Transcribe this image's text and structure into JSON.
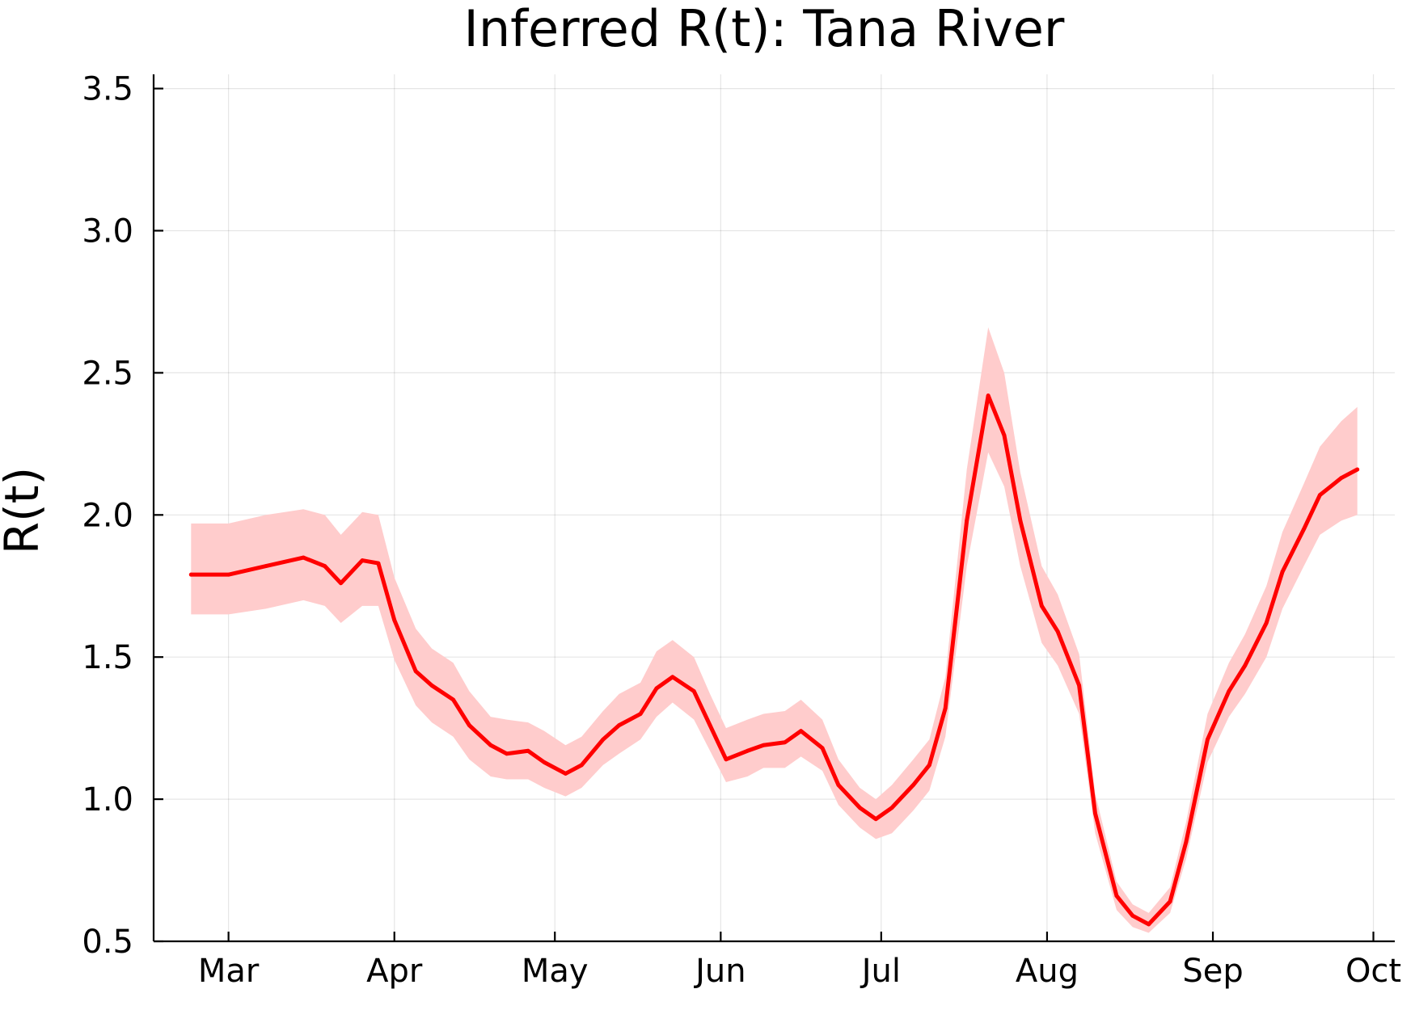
{
  "chart_data": {
    "type": "line",
    "title": "Inferred R(t): Tana River",
    "xlabel": "",
    "ylabel": "R(t)",
    "ylim": [
      0.5,
      3.55
    ],
    "xlim": [
      "2020-02-16",
      "2020-10-05"
    ],
    "grid": true,
    "legend": "none",
    "colors": {
      "line": "#ff0000",
      "band": "#ffcccc",
      "axis": "#000000"
    },
    "x_ticks": [
      {
        "label": "Mar",
        "date": "2020-03-01"
      },
      {
        "label": "Apr",
        "date": "2020-04-01"
      },
      {
        "label": "May",
        "date": "2020-05-01"
      },
      {
        "label": "Jun",
        "date": "2020-06-01"
      },
      {
        "label": "Jul",
        "date": "2020-07-01"
      },
      {
        "label": "Aug",
        "date": "2020-08-01"
      },
      {
        "label": "Sep",
        "date": "2020-09-01"
      },
      {
        "label": "Oct",
        "date": "2020-10-01"
      }
    ],
    "y_ticks": [
      {
        "label": "0.5",
        "value": 0.5
      },
      {
        "label": "1.0",
        "value": 1.0
      },
      {
        "label": "1.5",
        "value": 1.5
      },
      {
        "label": "2.0",
        "value": 2.0
      },
      {
        "label": "2.5",
        "value": 2.5
      },
      {
        "label": "3.0",
        "value": 3.0
      },
      {
        "label": "3.5",
        "value": 3.5
      }
    ],
    "series": [
      {
        "x": [
          "2020-02-23",
          "2020-03-01",
          "2020-03-08",
          "2020-03-15",
          "2020-03-19",
          "2020-03-22",
          "2020-03-26",
          "2020-03-29",
          "2020-04-01",
          "2020-04-05",
          "2020-04-08",
          "2020-04-12",
          "2020-04-15",
          "2020-04-19",
          "2020-04-22",
          "2020-04-26",
          "2020-04-29",
          "2020-05-03",
          "2020-05-06",
          "2020-05-10",
          "2020-05-13",
          "2020-05-17",
          "2020-05-20",
          "2020-05-23",
          "2020-05-27",
          "2020-05-30",
          "2020-06-02",
          "2020-06-06",
          "2020-06-09",
          "2020-06-13",
          "2020-06-16",
          "2020-06-20",
          "2020-06-23",
          "2020-06-27",
          "2020-06-30",
          "2020-07-03",
          "2020-07-07",
          "2020-07-10",
          "2020-07-13",
          "2020-07-17",
          "2020-07-21",
          "2020-07-24",
          "2020-07-27",
          "2020-07-31",
          "2020-08-03",
          "2020-08-07",
          "2020-08-10",
          "2020-08-14",
          "2020-08-17",
          "2020-08-20",
          "2020-08-24",
          "2020-08-27",
          "2020-08-31",
          "2020-09-04",
          "2020-09-07",
          "2020-09-11",
          "2020-09-14",
          "2020-09-18",
          "2020-09-21",
          "2020-09-25",
          "2020-09-28"
        ],
        "mean": [
          1.79,
          1.79,
          1.82,
          1.85,
          1.82,
          1.76,
          1.84,
          1.83,
          1.63,
          1.45,
          1.4,
          1.35,
          1.26,
          1.19,
          1.16,
          1.17,
          1.13,
          1.09,
          1.12,
          1.21,
          1.26,
          1.3,
          1.39,
          1.43,
          1.38,
          1.26,
          1.14,
          1.17,
          1.19,
          1.2,
          1.24,
          1.18,
          1.05,
          0.97,
          0.93,
          0.97,
          1.05,
          1.12,
          1.32,
          1.98,
          2.42,
          2.28,
          1.98,
          1.68,
          1.59,
          1.4,
          0.95,
          0.66,
          0.59,
          0.56,
          0.64,
          0.85,
          1.21,
          1.38,
          1.47,
          1.62,
          1.8,
          1.95,
          2.07,
          2.13,
          2.16
        ],
        "lower": [
          1.65,
          1.65,
          1.67,
          1.7,
          1.68,
          1.62,
          1.68,
          1.68,
          1.49,
          1.33,
          1.27,
          1.22,
          1.14,
          1.08,
          1.07,
          1.07,
          1.04,
          1.01,
          1.04,
          1.12,
          1.16,
          1.21,
          1.29,
          1.34,
          1.28,
          1.17,
          1.06,
          1.08,
          1.11,
          1.11,
          1.15,
          1.1,
          0.98,
          0.9,
          0.86,
          0.88,
          0.96,
          1.03,
          1.22,
          1.82,
          2.22,
          2.1,
          1.82,
          1.55,
          1.47,
          1.3,
          0.88,
          0.61,
          0.55,
          0.53,
          0.6,
          0.79,
          1.13,
          1.29,
          1.37,
          1.5,
          1.67,
          1.82,
          1.93,
          1.98,
          2.0
        ],
        "upper": [
          1.97,
          1.97,
          2.0,
          2.02,
          2.0,
          1.93,
          2.01,
          2.0,
          1.78,
          1.6,
          1.53,
          1.48,
          1.38,
          1.29,
          1.28,
          1.27,
          1.24,
          1.19,
          1.22,
          1.31,
          1.37,
          1.41,
          1.52,
          1.56,
          1.5,
          1.37,
          1.25,
          1.28,
          1.3,
          1.31,
          1.35,
          1.28,
          1.14,
          1.04,
          1.0,
          1.05,
          1.14,
          1.21,
          1.43,
          2.16,
          2.66,
          2.5,
          2.15,
          1.82,
          1.72,
          1.51,
          1.02,
          0.71,
          0.63,
          0.6,
          0.69,
          0.92,
          1.3,
          1.48,
          1.58,
          1.75,
          1.94,
          2.11,
          2.24,
          2.33,
          2.38
        ]
      }
    ]
  }
}
